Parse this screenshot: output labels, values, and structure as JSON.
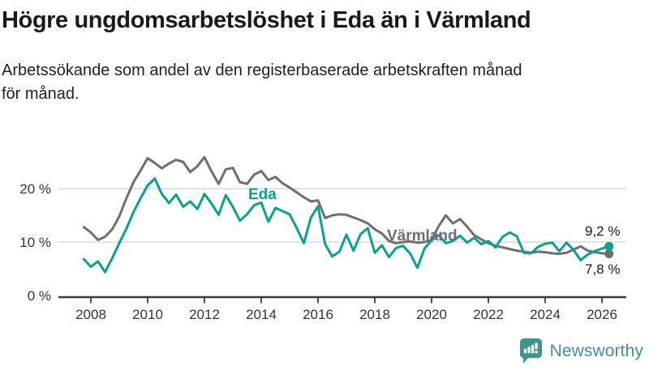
{
  "header": {
    "title": "Högre ungdomsarbetslöshet i Eda än i Värmland",
    "subtitle_lines": [
      "Arbetssökande som andel av den registerbaserade arbetskraften månad",
      "för månad."
    ]
  },
  "chart_data": {
    "type": "line",
    "title": "Högre ungdomsarbetslöshet i Eda än i Värmland",
    "subtitle": "Arbetssökande som andel av den registerbaserade arbetskraften månad för månad.",
    "grid": "horizontal",
    "legend_position": "inline-labels",
    "xlim": [
      2007.6,
      2026.8
    ],
    "ylim": [
      0,
      28
    ],
    "x_start": 2007.75,
    "x_step": 0.25,
    "x_ticks": [
      2008,
      2010,
      2012,
      2014,
      2016,
      2018,
      2020,
      2022,
      2024,
      2026
    ],
    "x_tick_labels": [
      "2008",
      "2010",
      "2012",
      "2014",
      "2016",
      "2018",
      "2020",
      "2022",
      "2024",
      "2026"
    ],
    "y_ticks": [
      {
        "value": 0,
        "label": "0 %"
      },
      {
        "value": 10,
        "label": "10 %"
      },
      {
        "value": 20,
        "label": "20 %"
      }
    ],
    "series": [
      {
        "name": "Eda",
        "color": "#0ca18f",
        "end_label": "9,2 %",
        "end_value": 9.2,
        "values": [
          6.8,
          5.4,
          6.4,
          4.4,
          7.0,
          9.8,
          12.5,
          15.6,
          18.2,
          20.6,
          21.9,
          19.0,
          17.3,
          18.9,
          16.6,
          17.6,
          16.2,
          19.0,
          17.2,
          15.1,
          18.8,
          16.6,
          14.0,
          15.2,
          16.9,
          17.4,
          13.8,
          16.4,
          15.8,
          15.2,
          12.6,
          9.8,
          14.6,
          16.7,
          9.6,
          7.3,
          8.2,
          11.4,
          8.4,
          11.5,
          12.6,
          8.0,
          9.4,
          7.2,
          8.9,
          9.3,
          7.8,
          5.2,
          8.8,
          10.3,
          11.3,
          9.8,
          10.2,
          11.2,
          9.9,
          10.8,
          9.6,
          10.2,
          9.0,
          11.0,
          11.8,
          11.1,
          8.0,
          7.9,
          9.1,
          9.7,
          9.9,
          8.3,
          9.9,
          8.5,
          6.6,
          7.7,
          8.3,
          8.8,
          9.2
        ]
      },
      {
        "name": "Värmland",
        "color": "#6f6f6f",
        "end_label": "7,8 %",
        "end_value": 7.8,
        "values": [
          12.8,
          11.8,
          10.4,
          11.0,
          12.4,
          14.8,
          18.2,
          21.2,
          23.4,
          25.7,
          24.8,
          23.8,
          24.7,
          25.4,
          25.0,
          23.1,
          24.2,
          25.9,
          23.2,
          20.9,
          23.6,
          23.9,
          21.2,
          20.9,
          22.6,
          23.3,
          21.6,
          22.2,
          21.0,
          20.2,
          19.3,
          18.4,
          17.6,
          17.8,
          14.5,
          15.0,
          15.2,
          15.1,
          14.6,
          14.1,
          13.5,
          12.4,
          11.6,
          10.2,
          9.8,
          10.0,
          10.1,
          9.9,
          10.0,
          10.4,
          13.0,
          15.0,
          13.5,
          14.3,
          12.9,
          11.3,
          10.5,
          9.8,
          9.3,
          9.0,
          8.7,
          8.4,
          8.2,
          8.0,
          8.2,
          8.1,
          7.9,
          7.8,
          8.0,
          8.6,
          9.2,
          8.4,
          8.1,
          7.9,
          7.8
        ]
      }
    ],
    "colors": {
      "grid": "#dcdcdc",
      "axis": "#3c3c3c",
      "tick_text": "#333333",
      "value_label_text": "#1a1a1a"
    }
  },
  "branding": {
    "logo_text": "Newsworthy",
    "brand_color": "#3f948c"
  }
}
